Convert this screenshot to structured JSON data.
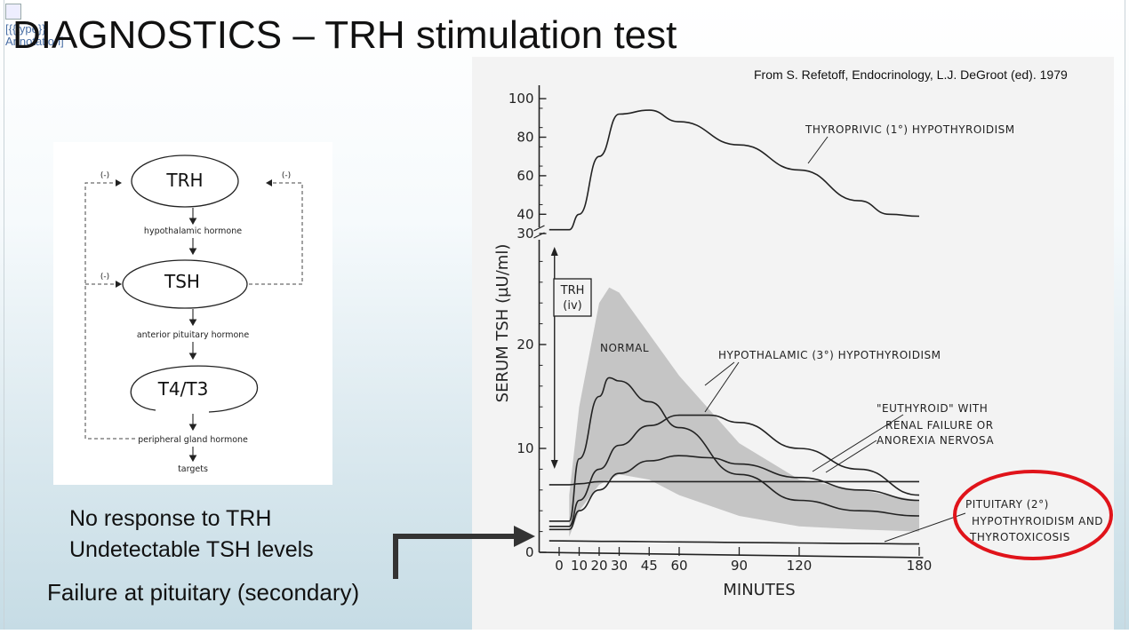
{
  "slide": {
    "broken_image_alt": "[{{type}} Annotation]",
    "title": "DIAGNOSTICS – TRH stimulation test",
    "source": "From S. Refetoff, Endocrinology, L.J. DeGroot (ed). 1979",
    "caption_lines": [
      "No response to TRH",
      "Undetectable TSH levels"
    ],
    "conclusion": "Failure at pituitary (secondary)",
    "highlight_color": "#e0131a",
    "arrow_color": "#333333"
  },
  "axis_diagram": {
    "nodes": [
      "TRH",
      "TSH",
      "T4/T3"
    ],
    "labels": [
      "hypothalamic hormone",
      "anterior pituitary hormone",
      "peripheral gland hormone",
      "targets"
    ],
    "feedback_marks": [
      "(-)",
      "(-)",
      "(-)"
    ]
  },
  "chart_data": {
    "type": "line",
    "xlabel": "MINUTES",
    "ylabel": "SERUM TSH (µU/ml)",
    "x_ticks": [
      "0",
      "10",
      "20",
      "30",
      "45",
      "60",
      "90",
      "120",
      "180"
    ],
    "y_ticks_lower": [
      "0",
      "10",
      "20"
    ],
    "y_ticks_upper": [
      "30",
      "40",
      "60",
      "80",
      "100"
    ],
    "xlim": [
      -10,
      180
    ],
    "ylim_lower": [
      0,
      30
    ],
    "ylim_upper": [
      30,
      100
    ],
    "injection_label": [
      "TRH",
      "(iv)"
    ],
    "series": [
      {
        "name": "THYROPRIVIC (1°) HYPOTHYROIDISM",
        "points": [
          [
            -5,
            32
          ],
          [
            5,
            32
          ],
          [
            10,
            40
          ],
          [
            20,
            70
          ],
          [
            30,
            92
          ],
          [
            45,
            94
          ],
          [
            60,
            88
          ],
          [
            90,
            76
          ],
          [
            120,
            63
          ],
          [
            150,
            47
          ],
          [
            165,
            40
          ],
          [
            180,
            39
          ]
        ]
      },
      {
        "name": "NORMAL",
        "points": [
          [
            -5,
            3
          ],
          [
            5,
            3
          ],
          [
            10,
            9
          ],
          [
            20,
            15
          ],
          [
            25,
            16.8
          ],
          [
            30,
            16.5
          ],
          [
            45,
            14.5
          ],
          [
            60,
            12
          ],
          [
            90,
            7.5
          ],
          [
            120,
            5
          ],
          [
            150,
            4
          ],
          [
            180,
            3.5
          ]
        ]
      },
      {
        "name": "HYPOTHALAMIC (3°) HYPOTHYROIDISM",
        "points": [
          [
            -5,
            2.5
          ],
          [
            5,
            2.5
          ],
          [
            10,
            5
          ],
          [
            20,
            8
          ],
          [
            30,
            10.3
          ],
          [
            45,
            12.2
          ],
          [
            60,
            13.2
          ],
          [
            75,
            13.2
          ],
          [
            90,
            12.5
          ],
          [
            120,
            10
          ],
          [
            150,
            8
          ],
          [
            180,
            5.5
          ]
        ]
      },
      {
        "name": "\"EUTHYROID\" WITH RENAL FAILURE OR ANOREXIA NERVOSA",
        "points": [
          [
            -5,
            2.2
          ],
          [
            5,
            2.2
          ],
          [
            10,
            4
          ],
          [
            20,
            6
          ],
          [
            30,
            7.6
          ],
          [
            45,
            8.8
          ],
          [
            60,
            9.3
          ],
          [
            75,
            9.1
          ],
          [
            90,
            8.5
          ],
          [
            120,
            7.2
          ],
          [
            150,
            6
          ],
          [
            180,
            5
          ]
        ]
      },
      {
        "name": "PITUITARY (2°) HYPOTHYROIDISM AND THYROTOXICOSIS",
        "points": [
          [
            -5,
            1.1
          ],
          [
            30,
            1.05
          ],
          [
            60,
            1.0
          ],
          [
            90,
            0.95
          ],
          [
            120,
            0.9
          ],
          [
            150,
            0.85
          ],
          [
            180,
            0.8
          ]
        ]
      },
      {
        "name": "",
        "points": [
          [
            -5,
            6.5
          ],
          [
            5,
            6.5
          ],
          [
            10,
            6.6
          ],
          [
            20,
            6.8
          ],
          [
            180,
            6.8
          ]
        ]
      }
    ],
    "normal_band": {
      "upper": [
        [
          5,
          5.5
        ],
        [
          10,
          14
        ],
        [
          20,
          24
        ],
        [
          25,
          25.5
        ],
        [
          30,
          25
        ],
        [
          45,
          21
        ],
        [
          60,
          17
        ],
        [
          90,
          10.5
        ],
        [
          120,
          7
        ],
        [
          150,
          6
        ],
        [
          180,
          5
        ]
      ],
      "lower": [
        [
          5,
          1.5
        ],
        [
          10,
          4
        ],
        [
          20,
          6.5
        ],
        [
          30,
          7.5
        ],
        [
          45,
          7
        ],
        [
          60,
          5.5
        ],
        [
          90,
          3.5
        ],
        [
          120,
          2.5
        ],
        [
          150,
          2.2
        ],
        [
          180,
          2
        ]
      ]
    },
    "annotations": [
      "THYROPRIVIC (1°) HYPOTHYROIDISM",
      "NORMAL",
      "HYPOTHALAMIC (3°) HYPOTHYROIDISM",
      "\"EUTHYROID\" WITH",
      "RENAL FAILURE OR",
      "ANOREXIA NERVOSA",
      "PITUITARY (2°)",
      "HYPOTHYROIDISM AND",
      "THYROTOXICOSIS"
    ]
  }
}
